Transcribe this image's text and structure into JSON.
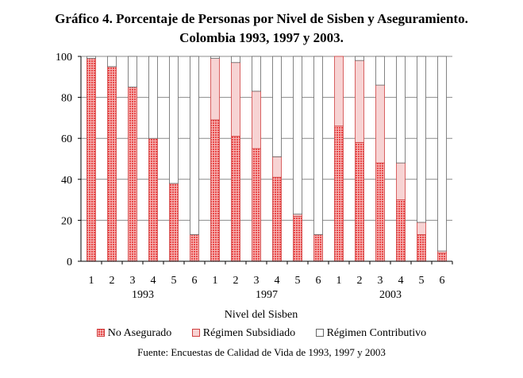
{
  "title_line1": "Gráfico 4. Porcentaje de Personas por Nivel de Sisben y Aseguramiento.",
  "title_line2": "Colombia 1993, 1997 y 2003.",
  "source": "Fuente: Encuestas de Calidad de Vida de 1993, 1997 y 2003",
  "colors": {
    "no_asegurado": "#e84848",
    "subsidiado": "#f7d3d3",
    "contributivo": "#ffffff",
    "edge": "#d04040"
  },
  "chart_data": {
    "type": "bar",
    "stacked": true,
    "xlabel": "Nivel del Sisben",
    "ylabel": "",
    "ylim": [
      0,
      100
    ],
    "yticks": [
      0,
      20,
      40,
      60,
      80,
      100
    ],
    "grid": true,
    "legend_position": "bottom",
    "groups": [
      {
        "label": "1993",
        "categories": [
          "1",
          "2",
          "3",
          "4",
          "5",
          "6"
        ]
      },
      {
        "label": "1997",
        "categories": [
          "1",
          "2",
          "3",
          "4",
          "5",
          "6"
        ]
      },
      {
        "label": "2003",
        "categories": [
          "1",
          "2",
          "3",
          "4",
          "5",
          "6"
        ]
      }
    ],
    "series": [
      {
        "name": "No Asegurado",
        "values": [
          99,
          95,
          85,
          60,
          38,
          13,
          69,
          61,
          55,
          41,
          22,
          13,
          66,
          58,
          48,
          30,
          13,
          4
        ]
      },
      {
        "name": "Régimen Subsidiado",
        "values": [
          0,
          0,
          0,
          0,
          0,
          0,
          30,
          36,
          28,
          10,
          1,
          0,
          34,
          40,
          38,
          18,
          6,
          1
        ]
      },
      {
        "name": "Régimen Contributivo",
        "values": [
          1,
          5,
          15,
          40,
          62,
          87,
          1,
          3,
          17,
          49,
          77,
          87,
          0,
          2,
          14,
          52,
          81,
          95
        ]
      }
    ]
  }
}
